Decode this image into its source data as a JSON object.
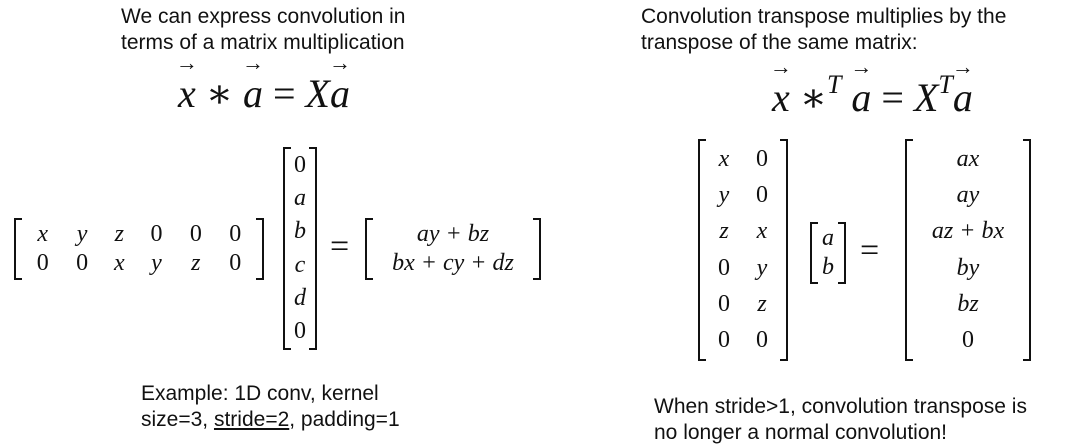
{
  "left": {
    "caption_line1": "We can express convolution in",
    "caption_line2": "terms of a matrix multiplication",
    "equation": {
      "x": "x",
      "op": "∗",
      "a": "a",
      "eq": "=",
      "X": "X",
      "a2": "a"
    },
    "matrix_X": [
      [
        "x",
        "y",
        "z",
        "0",
        "0",
        "0"
      ],
      [
        "0",
        "0",
        "x",
        "y",
        "z",
        "0"
      ]
    ],
    "vector_a": [
      "0",
      "a",
      "b",
      "c",
      "d",
      "0"
    ],
    "equals": "=",
    "result": [
      "ay + bz",
      "bx + cy + dz"
    ],
    "example_line1": "Example: 1D conv, kernel",
    "example_line2_a": "size=3, ",
    "example_line2_b": "stride=2",
    "example_line2_c": ", padding=1"
  },
  "right": {
    "caption_line1": "Convolution transpose multiplies by the",
    "caption_line2": "transpose of the same matrix:",
    "equation": {
      "x": "x",
      "op": "∗",
      "T1": "T",
      "a": "a",
      "eq": "=",
      "X": "X",
      "T2": "T",
      "a2": "a"
    },
    "matrix_XT": [
      [
        "x",
        "0"
      ],
      [
        "y",
        "0"
      ],
      [
        "z",
        "x"
      ],
      [
        "0",
        "y"
      ],
      [
        "0",
        "z"
      ],
      [
        "0",
        "0"
      ]
    ],
    "vector_a": [
      "a",
      "b"
    ],
    "equals": "=",
    "result": [
      "ax",
      "ay",
      "az + bx",
      "by",
      "bz",
      "0"
    ],
    "note_line1": "When stride>1, convolution transpose is",
    "note_line2": "no longer a normal convolution!"
  }
}
